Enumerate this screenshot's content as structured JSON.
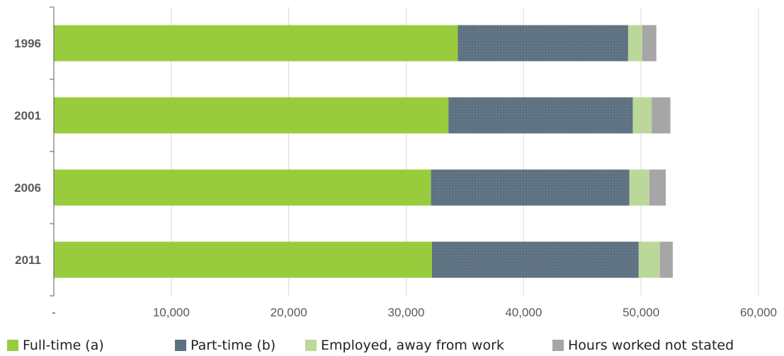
{
  "chart_data": {
    "type": "bar",
    "orientation": "horizontal",
    "stacked": true,
    "categories": [
      "1996",
      "2001",
      "2006",
      "2011"
    ],
    "series": [
      {
        "name": "Full-time (a)",
        "color": "#99cc3d",
        "values": [
          34400,
          33600,
          32100,
          32200
        ]
      },
      {
        "name": "Part-time (b)",
        "color": "#5c7080",
        "values": [
          14500,
          15700,
          16900,
          17600
        ]
      },
      {
        "name": "Employed, away from work",
        "color": "#bcd79a",
        "values": [
          1200,
          1600,
          1700,
          1800
        ]
      },
      {
        "name": "Hours worked not stated",
        "color": "#a6a6a6",
        "values": [
          1200,
          1600,
          1400,
          1100
        ]
      }
    ],
    "xlim": [
      0,
      60000
    ],
    "x_ticks": [
      "-",
      "10,000",
      "20,000",
      "30,000",
      "40,000",
      "50,000",
      "60,000"
    ],
    "xlabel": "",
    "ylabel": "",
    "title": "",
    "grid": "vertical",
    "legend_position": "bottom"
  }
}
